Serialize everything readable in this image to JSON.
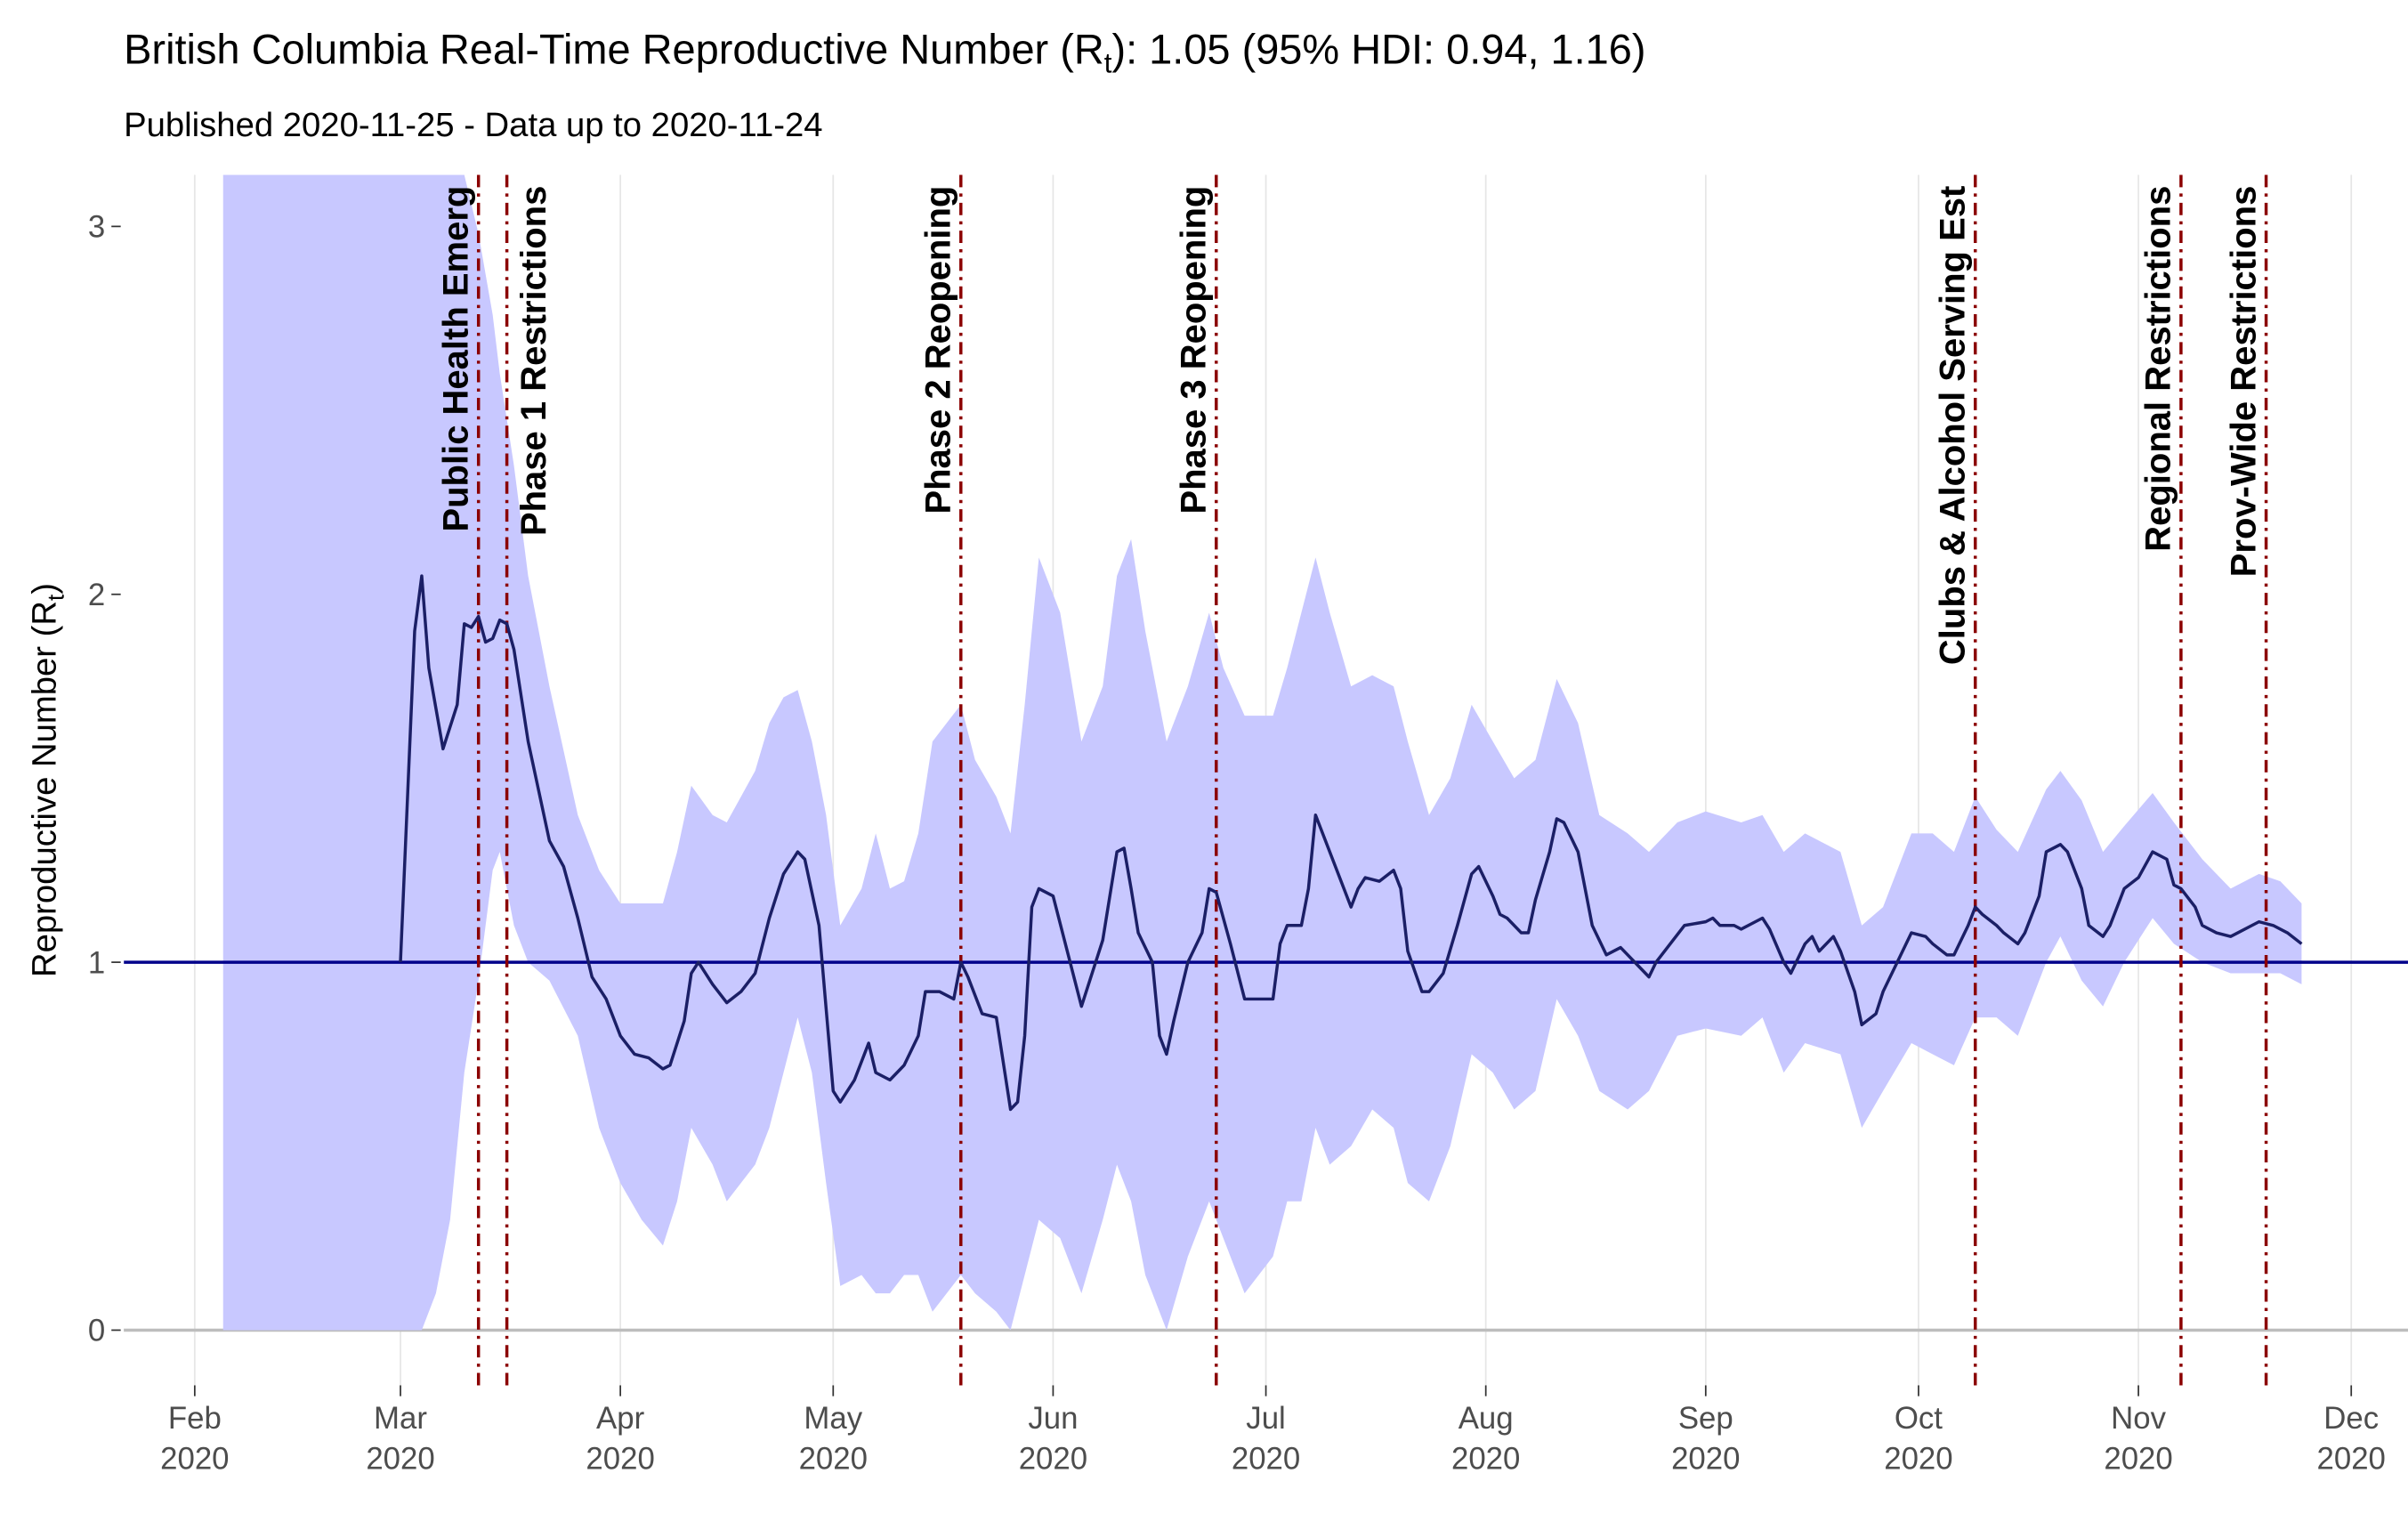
{
  "chart_data": {
    "type": "ribbon-line",
    "title": {
      "prefix": "British Columbia Real-Time Reproductive Number (R",
      "subscript": "t",
      "suffix": "):  1.05 (95% HDI: 0.94, 1.16)"
    },
    "subtitle": "Published 2020-11-25 - Data up to 2020-11-24",
    "y_label": {
      "prefix": "Reproductive Number (R",
      "subscript": "t",
      "suffix": ")"
    },
    "xlim": [
      "2020-01-22",
      "2020-12-09"
    ],
    "xticks": [
      {
        "value": "2020-02-01",
        "label": "Feb\n2020"
      },
      {
        "value": "2020-03-01",
        "label": "Mar\n2020"
      },
      {
        "value": "2020-04-01",
        "label": "Apr\n2020"
      },
      {
        "value": "2020-05-01",
        "label": "May\n2020"
      },
      {
        "value": "2020-06-01",
        "label": "Jun\n2020"
      },
      {
        "value": "2020-07-01",
        "label": "Jul\n2020"
      },
      {
        "value": "2020-08-01",
        "label": "Aug\n2020"
      },
      {
        "value": "2020-09-01",
        "label": "Sep\n2020"
      },
      {
        "value": "2020-10-01",
        "label": "Oct\n2020"
      },
      {
        "value": "2020-11-01",
        "label": "Nov\n2020"
      },
      {
        "value": "2020-12-01",
        "label": "Dec\n2020"
      }
    ],
    "ylim": [
      -0.15,
      3.14
    ],
    "yticks": [
      0,
      1,
      2,
      3
    ],
    "grid": true,
    "reference_line": 1,
    "reference_color": "#00008b",
    "line": {
      "color": "#1b1f66",
      "x": [
        "2020-03-01",
        "2020-03-03",
        "2020-03-04",
        "2020-03-05",
        "2020-03-07",
        "2020-03-09",
        "2020-03-10",
        "2020-03-11",
        "2020-03-12",
        "2020-03-13",
        "2020-03-14",
        "2020-03-15",
        "2020-03-16",
        "2020-03-17",
        "2020-03-19",
        "2020-03-22",
        "2020-03-24",
        "2020-03-26",
        "2020-03-28",
        "2020-03-30",
        "2020-04-01",
        "2020-04-03",
        "2020-04-05",
        "2020-04-07",
        "2020-04-08",
        "2020-04-10",
        "2020-04-11",
        "2020-04-12",
        "2020-04-14",
        "2020-04-16",
        "2020-04-18",
        "2020-04-20",
        "2020-04-22",
        "2020-04-24",
        "2020-04-26",
        "2020-04-27",
        "2020-04-29",
        "2020-05-01",
        "2020-05-02",
        "2020-05-04",
        "2020-05-06",
        "2020-05-07",
        "2020-05-09",
        "2020-05-11",
        "2020-05-13",
        "2020-05-14",
        "2020-05-16",
        "2020-05-18",
        "2020-05-19",
        "2020-05-20",
        "2020-05-22",
        "2020-05-24",
        "2020-05-26",
        "2020-05-27",
        "2020-05-28",
        "2020-05-29",
        "2020-05-30",
        "2020-06-01",
        "2020-06-03",
        "2020-06-05",
        "2020-06-07",
        "2020-06-08",
        "2020-06-10",
        "2020-06-11",
        "2020-06-12",
        "2020-06-13",
        "2020-06-15",
        "2020-06-16",
        "2020-06-17",
        "2020-06-18",
        "2020-06-20",
        "2020-06-22",
        "2020-06-23",
        "2020-06-24",
        "2020-06-26",
        "2020-06-28",
        "2020-07-02",
        "2020-07-03",
        "2020-07-04",
        "2020-07-06",
        "2020-07-07",
        "2020-07-08",
        "2020-07-09",
        "2020-07-11",
        "2020-07-13",
        "2020-07-14",
        "2020-07-15",
        "2020-07-17",
        "2020-07-19",
        "2020-07-20",
        "2020-07-21",
        "2020-07-23",
        "2020-07-24",
        "2020-07-26",
        "2020-07-28",
        "2020-07-30",
        "2020-07-31",
        "2020-08-02",
        "2020-08-03",
        "2020-08-04",
        "2020-08-06",
        "2020-08-07",
        "2020-08-08",
        "2020-08-10",
        "2020-08-11",
        "2020-08-12",
        "2020-08-14",
        "2020-08-16",
        "2020-08-18",
        "2020-08-20",
        "2020-08-21",
        "2020-08-23",
        "2020-08-24",
        "2020-08-25",
        "2020-08-27",
        "2020-08-29",
        "2020-09-01",
        "2020-09-02",
        "2020-09-03",
        "2020-09-05",
        "2020-09-06",
        "2020-09-08",
        "2020-09-09",
        "2020-09-10",
        "2020-09-12",
        "2020-09-13",
        "2020-09-15",
        "2020-09-16",
        "2020-09-17",
        "2020-09-19",
        "2020-09-20",
        "2020-09-22",
        "2020-09-23",
        "2020-09-25",
        "2020-09-26",
        "2020-09-28",
        "2020-09-30",
        "2020-10-02",
        "2020-10-03",
        "2020-10-05",
        "2020-10-06",
        "2020-10-08",
        "2020-10-09",
        "2020-10-10",
        "2020-10-12",
        "2020-10-13",
        "2020-10-15",
        "2020-10-16",
        "2020-10-18",
        "2020-10-19",
        "2020-10-21",
        "2020-10-22",
        "2020-10-24",
        "2020-10-25",
        "2020-10-27",
        "2020-10-28",
        "2020-10-30",
        "2020-11-01",
        "2020-11-03",
        "2020-11-05",
        "2020-11-06",
        "2020-11-07",
        "2020-11-09",
        "2020-11-10",
        "2020-11-12",
        "2020-11-14",
        "2020-11-15",
        "2020-11-17",
        "2020-11-18",
        "2020-11-20",
        "2020-11-22",
        "2020-11-24"
      ],
      "values": [
        1.0,
        1.9,
        2.05,
        1.8,
        1.58,
        1.7,
        1.92,
        1.91,
        1.94,
        1.87,
        1.88,
        1.93,
        1.92,
        1.85,
        1.6,
        1.33,
        1.26,
        1.12,
        0.96,
        0.9,
        0.8,
        0.75,
        0.74,
        0.71,
        0.72,
        0.84,
        0.97,
        1.0,
        0.94,
        0.89,
        0.92,
        0.97,
        1.12,
        1.24,
        1.3,
        1.28,
        1.1,
        0.65,
        0.62,
        0.68,
        0.78,
        0.7,
        0.68,
        0.72,
        0.8,
        0.92,
        0.92,
        0.9,
        1.0,
        0.96,
        0.86,
        0.85,
        0.6,
        0.62,
        0.8,
        1.15,
        1.2,
        1.18,
        1.03,
        0.88,
        1.0,
        1.06,
        1.3,
        1.31,
        1.2,
        1.08,
        1.0,
        0.8,
        0.75,
        0.84,
        1.0,
        1.08,
        1.2,
        1.19,
        1.05,
        0.9,
        0.9,
        1.05,
        1.1,
        1.1,
        1.2,
        1.4,
        1.35,
        1.25,
        1.15,
        1.2,
        1.23,
        1.22,
        1.25,
        1.2,
        1.03,
        0.92,
        0.92,
        0.97,
        1.1,
        1.24,
        1.26,
        1.18,
        1.13,
        1.12,
        1.08,
        1.08,
        1.17,
        1.3,
        1.39,
        1.38,
        1.3,
        1.1,
        1.02,
        1.04,
        1.02,
        0.98,
        0.96,
        1.0,
        1.05,
        1.1,
        1.11,
        1.12,
        1.1,
        1.1,
        1.09,
        1.11,
        1.12,
        1.09,
        1.0,
        0.97,
        1.05,
        1.07,
        1.03,
        1.07,
        1.03,
        0.92,
        0.83,
        0.86,
        0.92,
        1.0,
        1.08,
        1.07,
        1.05,
        1.02,
        1.02,
        1.1,
        1.15,
        1.13,
        1.1,
        1.08,
        1.05,
        1.08,
        1.18,
        1.3,
        1.32,
        1.3,
        1.2,
        1.1,
        1.07,
        1.1,
        1.2,
        1.23,
        1.3,
        1.28,
        1.21,
        1.2,
        1.15,
        1.1,
        1.08,
        1.07,
        1.08,
        1.1,
        1.11,
        1.1,
        1.08,
        1.05
      ]
    },
    "band": {
      "color": "#c8c8ff",
      "x": [
        "2020-02-05",
        "2020-02-29",
        "2020-03-04",
        "2020-03-06",
        "2020-03-08",
        "2020-03-10",
        "2020-03-12",
        "2020-03-14",
        "2020-03-15",
        "2020-03-17",
        "2020-03-19",
        "2020-03-22",
        "2020-03-26",
        "2020-03-29",
        "2020-04-01",
        "2020-04-04",
        "2020-04-07",
        "2020-04-09",
        "2020-04-11",
        "2020-04-14",
        "2020-04-16",
        "2020-04-18",
        "2020-04-20",
        "2020-04-22",
        "2020-04-24",
        "2020-04-26",
        "2020-04-28",
        "2020-04-30",
        "2020-05-02",
        "2020-05-05",
        "2020-05-07",
        "2020-05-09",
        "2020-05-11",
        "2020-05-13",
        "2020-05-15",
        "2020-05-17",
        "2020-05-19",
        "2020-05-21",
        "2020-05-24",
        "2020-05-26",
        "2020-05-28",
        "2020-05-30",
        "2020-06-02",
        "2020-06-05",
        "2020-06-08",
        "2020-06-10",
        "2020-06-12",
        "2020-06-14",
        "2020-06-17",
        "2020-06-20",
        "2020-06-23",
        "2020-06-25",
        "2020-06-28",
        "2020-07-02",
        "2020-07-04",
        "2020-07-06",
        "2020-07-08",
        "2020-07-10",
        "2020-07-13",
        "2020-07-16",
        "2020-07-19",
        "2020-07-21",
        "2020-07-24",
        "2020-07-27",
        "2020-07-30",
        "2020-08-02",
        "2020-08-05",
        "2020-08-08",
        "2020-08-11",
        "2020-08-14",
        "2020-08-17",
        "2020-08-21",
        "2020-08-24",
        "2020-08-28",
        "2020-09-01",
        "2020-09-06",
        "2020-09-09",
        "2020-09-12",
        "2020-09-15",
        "2020-09-20",
        "2020-09-23",
        "2020-09-26",
        "2020-09-30",
        "2020-10-03",
        "2020-10-06",
        "2020-10-09",
        "2020-10-12",
        "2020-10-15",
        "2020-10-19",
        "2020-10-21",
        "2020-10-24",
        "2020-10-27",
        "2020-10-30",
        "2020-11-03",
        "2020-11-06",
        "2020-11-10",
        "2020-11-14",
        "2020-11-18",
        "2020-11-21",
        "2020-11-24"
      ],
      "lower": [
        0,
        0,
        0,
        0.1,
        0.3,
        0.7,
        0.95,
        1.25,
        1.3,
        1.1,
        1.0,
        0.95,
        0.8,
        0.55,
        0.4,
        0.3,
        0.23,
        0.35,
        0.55,
        0.45,
        0.35,
        0.4,
        0.45,
        0.55,
        0.7,
        0.85,
        0.7,
        0.4,
        0.12,
        0.15,
        0.1,
        0.1,
        0.15,
        0.15,
        0.05,
        0.1,
        0.15,
        0.1,
        0.05,
        0.0,
        0.15,
        0.3,
        0.25,
        0.1,
        0.3,
        0.45,
        0.35,
        0.15,
        0.0,
        0.2,
        0.35,
        0.25,
        0.1,
        0.2,
        0.35,
        0.35,
        0.55,
        0.45,
        0.5,
        0.6,
        0.55,
        0.4,
        0.35,
        0.5,
        0.75,
        0.7,
        0.6,
        0.65,
        0.9,
        0.8,
        0.65,
        0.6,
        0.65,
        0.8,
        0.82,
        0.8,
        0.85,
        0.7,
        0.78,
        0.75,
        0.55,
        0.65,
        0.78,
        0.75,
        0.72,
        0.85,
        0.85,
        0.8,
        1.0,
        1.07,
        0.95,
        0.88,
        1.0,
        1.12,
        1.05,
        1.0,
        0.97,
        0.97,
        0.97,
        0.94
      ],
      "upper": [
        3.14,
        3.14,
        3.14,
        3.14,
        3.14,
        3.14,
        2.98,
        2.76,
        2.6,
        2.35,
        2.05,
        1.75,
        1.4,
        1.25,
        1.16,
        1.16,
        1.16,
        1.3,
        1.48,
        1.4,
        1.38,
        1.45,
        1.52,
        1.65,
        1.72,
        1.74,
        1.6,
        1.4,
        1.1,
        1.2,
        1.35,
        1.2,
        1.22,
        1.35,
        1.6,
        1.65,
        1.7,
        1.55,
        1.45,
        1.35,
        1.7,
        2.1,
        1.95,
        1.6,
        1.75,
        2.05,
        2.15,
        1.9,
        1.6,
        1.75,
        1.95,
        1.8,
        1.67,
        1.67,
        1.8,
        1.95,
        2.1,
        1.95,
        1.75,
        1.78,
        1.75,
        1.6,
        1.4,
        1.5,
        1.7,
        1.6,
        1.5,
        1.55,
        1.77,
        1.65,
        1.4,
        1.35,
        1.3,
        1.38,
        1.41,
        1.38,
        1.4,
        1.3,
        1.35,
        1.3,
        1.1,
        1.15,
        1.35,
        1.35,
        1.3,
        1.45,
        1.36,
        1.3,
        1.47,
        1.52,
        1.44,
        1.3,
        1.37,
        1.46,
        1.38,
        1.28,
        1.2,
        1.24,
        1.22,
        1.16
      ]
    },
    "event_color": "#8b0000",
    "events": [
      {
        "x": "2020-03-12",
        "label": "Public Health Emerg"
      },
      {
        "x": "2020-03-16",
        "label": "Phase 1 Restrictions"
      },
      {
        "x": "2020-05-19",
        "label": "Phase 2 Reopening"
      },
      {
        "x": "2020-06-24",
        "label": "Phase 3 Reopening"
      },
      {
        "x": "2020-10-09",
        "label": "Clubs & Alcohol Serving Est"
      },
      {
        "x": "2020-11-07",
        "label": "Regional Restrictions"
      },
      {
        "x": "2020-11-19",
        "label": "Prov-Wide Restrictions"
      }
    ]
  }
}
